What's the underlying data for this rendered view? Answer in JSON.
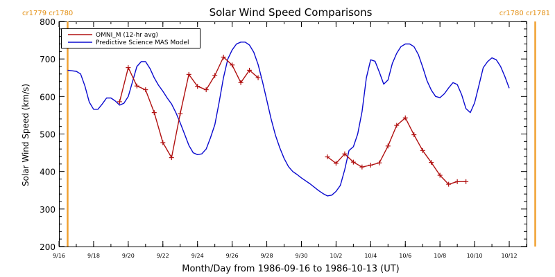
{
  "chart_data": {
    "type": "line",
    "title": "Solar Wind Speed Comparisons",
    "xlabel": "Month/Day from 1986-09-16 to 1986-10-13 (UT)",
    "ylabel": "Solar Wind Speed (km/s)",
    "xlim": [
      "1986-09-16",
      "1986-10-13"
    ],
    "ylim": [
      200,
      800
    ],
    "x_ticks": [
      "9/16",
      "9/18",
      "9/20",
      "9/22",
      "9/24",
      "9/26",
      "9/28",
      "9/30",
      "10/2",
      "10/4",
      "10/6",
      "10/8",
      "10/10",
      "10/12"
    ],
    "y_ticks": [
      200,
      300,
      400,
      500,
      600,
      700,
      800
    ],
    "grid": false,
    "legend_position": "top-left",
    "rotation_labels": [
      {
        "text": "cr1779 cr1780",
        "date": "1986-09-16T12:00"
      },
      {
        "text": "cr1780 cr1781",
        "date": "1986-10-13T12:00"
      }
    ],
    "rotation_color": "#f0a030",
    "series": [
      {
        "name": "OMNI_M (12-hr avg)",
        "color": "#b01010",
        "marker": "plus",
        "segments": [
          [
            [
              "1986-09-19T12:00",
              586
            ],
            [
              "1986-09-20T00:00",
              677
            ],
            [
              "1986-09-20T12:00",
              628
            ],
            [
              "1986-09-21T00:00",
              618
            ],
            [
              "1986-09-21T12:00",
              557
            ],
            [
              "1986-09-22T00:00",
              477
            ],
            [
              "1986-09-22T12:00",
              437
            ],
            [
              "1986-09-23T00:00",
              554
            ],
            [
              "1986-09-23T12:00",
              659
            ],
            [
              "1986-09-24T00:00",
              627
            ],
            [
              "1986-09-24T12:00",
              618
            ],
            [
              "1986-09-25T00:00",
              656
            ],
            [
              "1986-09-25T12:00",
              705
            ],
            [
              "1986-09-26T00:00",
              684
            ],
            [
              "1986-09-26T12:00",
              637
            ],
            [
              "1986-09-27T00:00",
              670
            ],
            [
              "1986-09-27T12:00",
              650
            ]
          ],
          [
            [
              "1986-10-01T12:00",
              439
            ],
            [
              "1986-10-02T00:00",
              422
            ],
            [
              "1986-10-02T12:00",
              447
            ],
            [
              "1986-10-03T00:00",
              425
            ],
            [
              "1986-10-03T12:00",
              412
            ],
            [
              "1986-10-04T00:00",
              417
            ],
            [
              "1986-10-04T12:00",
              423
            ],
            [
              "1986-10-05T00:00",
              468
            ],
            [
              "1986-10-05T12:00",
              523
            ],
            [
              "1986-10-06T00:00",
              543
            ],
            [
              "1986-10-06T12:00",
              498
            ],
            [
              "1986-10-07T00:00",
              456
            ],
            [
              "1986-10-07T12:00",
              424
            ],
            [
              "1986-10-08T00:00",
              390
            ],
            [
              "1986-10-08T12:00",
              366
            ],
            [
              "1986-10-09T00:00",
              373
            ],
            [
              "1986-10-09T12:00",
              373
            ]
          ]
        ]
      },
      {
        "name": "Predictive Science MAS Model",
        "color": "#0a0acf",
        "marker": "none",
        "segments": [
          [
            [
              "1986-09-16T12:00",
              670
            ],
            [
              "1986-09-17T00:00",
              667
            ],
            [
              "1986-09-17T06:00",
              660
            ],
            [
              "1986-09-17T12:00",
              628
            ],
            [
              "1986-09-17T18:00",
              585
            ],
            [
              "1986-09-18T00:00",
              566
            ],
            [
              "1986-09-18T06:00",
              566
            ],
            [
              "1986-09-18T12:00",
              580
            ],
            [
              "1986-09-18T18:00",
              596
            ],
            [
              "1986-09-19T00:00",
              596
            ],
            [
              "1986-09-19T06:00",
              588
            ],
            [
              "1986-09-19T12:00",
              577
            ],
            [
              "1986-09-19T18:00",
              582
            ],
            [
              "1986-09-20T00:00",
              600
            ],
            [
              "1986-09-20T06:00",
              640
            ],
            [
              "1986-09-20T12:00",
              680
            ],
            [
              "1986-09-20T18:00",
              693
            ],
            [
              "1986-09-21T00:00",
              693
            ],
            [
              "1986-09-21T06:00",
              675
            ],
            [
              "1986-09-21T12:00",
              650
            ],
            [
              "1986-09-21T18:00",
              630
            ],
            [
              "1986-09-22T00:00",
              614
            ],
            [
              "1986-09-22T06:00",
              596
            ],
            [
              "1986-09-22T12:00",
              580
            ],
            [
              "1986-09-22T18:00",
              557
            ],
            [
              "1986-09-23T00:00",
              530
            ],
            [
              "1986-09-23T06:00",
              500
            ],
            [
              "1986-09-23T12:00",
              470
            ],
            [
              "1986-09-23T18:00",
              450
            ],
            [
              "1986-09-24T00:00",
              445
            ],
            [
              "1986-09-24T06:00",
              447
            ],
            [
              "1986-09-24T12:00",
              460
            ],
            [
              "1986-09-24T18:00",
              490
            ],
            [
              "1986-09-25T00:00",
              525
            ],
            [
              "1986-09-25T06:00",
              585
            ],
            [
              "1986-09-25T12:00",
              650
            ],
            [
              "1986-09-25T18:00",
              700
            ],
            [
              "1986-09-26T00:00",
              724
            ],
            [
              "1986-09-26T06:00",
              740
            ],
            [
              "1986-09-26T12:00",
              745
            ],
            [
              "1986-09-26T18:00",
              745
            ],
            [
              "1986-09-27T00:00",
              737
            ],
            [
              "1986-09-27T06:00",
              718
            ],
            [
              "1986-09-27T12:00",
              685
            ],
            [
              "1986-09-27T18:00",
              640
            ],
            [
              "1986-09-28T00:00",
              590
            ],
            [
              "1986-09-28T06:00",
              540
            ],
            [
              "1986-09-28T12:00",
              497
            ],
            [
              "1986-09-28T18:00",
              463
            ],
            [
              "1986-09-29T00:00",
              435
            ],
            [
              "1986-09-29T06:00",
              413
            ],
            [
              "1986-09-29T12:00",
              400
            ],
            [
              "1986-09-29T18:00",
              392
            ],
            [
              "1986-09-30T00:00",
              383
            ],
            [
              "1986-09-30T06:00",
              375
            ],
            [
              "1986-09-30T12:00",
              367
            ],
            [
              "1986-09-30T18:00",
              358
            ],
            [
              "1986-10-01T00:00",
              349
            ],
            [
              "1986-10-01T06:00",
              341
            ],
            [
              "1986-10-01T12:00",
              335
            ],
            [
              "1986-10-01T18:00",
              337
            ],
            [
              "1986-10-02T00:00",
              347
            ],
            [
              "1986-10-02T06:00",
              363
            ],
            [
              "1986-10-02T12:00",
              405
            ],
            [
              "1986-10-02T18:00",
              456
            ],
            [
              "1986-10-03T00:00",
              466
            ],
            [
              "1986-10-03T06:00",
              500
            ],
            [
              "1986-10-03T12:00",
              560
            ],
            [
              "1986-10-03T18:00",
              650
            ],
            [
              "1986-10-04T00:00",
              698
            ],
            [
              "1986-10-04T06:00",
              694
            ],
            [
              "1986-10-04T12:00",
              665
            ],
            [
              "1986-10-04T18:00",
              633
            ],
            [
              "1986-10-05T00:00",
              644
            ],
            [
              "1986-10-05T06:00",
              688
            ],
            [
              "1986-10-05T12:00",
              715
            ],
            [
              "1986-10-05T18:00",
              733
            ],
            [
              "1986-10-06T00:00",
              740
            ],
            [
              "1986-10-06T06:00",
              740
            ],
            [
              "1986-10-06T12:00",
              733
            ],
            [
              "1986-10-06T18:00",
              712
            ],
            [
              "1986-10-07T00:00",
              679
            ],
            [
              "1986-10-07T06:00",
              642
            ],
            [
              "1986-10-07T12:00",
              617
            ],
            [
              "1986-10-07T18:00",
              600
            ],
            [
              "1986-10-08T00:00",
              597
            ],
            [
              "1986-10-08T06:00",
              607
            ],
            [
              "1986-10-08T12:00",
              623
            ],
            [
              "1986-10-08T18:00",
              637
            ],
            [
              "1986-10-09T00:00",
              632
            ],
            [
              "1986-10-09T06:00",
              605
            ],
            [
              "1986-10-09T12:00",
              568
            ],
            [
              "1986-10-09T18:00",
              557
            ],
            [
              "1986-10-10T00:00",
              583
            ],
            [
              "1986-10-10T06:00",
              630
            ],
            [
              "1986-10-10T12:00",
              677
            ],
            [
              "1986-10-10T18:00",
              693
            ],
            [
              "1986-10-11T00:00",
              703
            ],
            [
              "1986-10-11T06:00",
              698
            ],
            [
              "1986-10-11T12:00",
              680
            ],
            [
              "1986-10-11T18:00",
              653
            ],
            [
              "1986-10-12T00:00",
              622
            ]
          ]
        ]
      }
    ]
  }
}
